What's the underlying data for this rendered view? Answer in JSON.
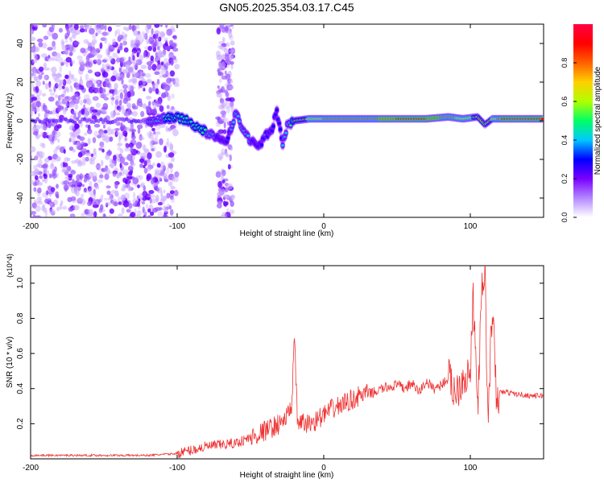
{
  "title": "GN05.2025.354.03.17.C45",
  "chart_data": [
    {
      "type": "heatmap",
      "name": "spectrogram",
      "xlabel": "Height of straight line (km)",
      "ylabel": "Frequency (Hz)",
      "xlim": [
        -200,
        150
      ],
      "ylim": [
        -50,
        50
      ],
      "xticks": [
        -200,
        -100,
        0,
        100
      ],
      "yticks": [
        -40,
        -20,
        0,
        20,
        40
      ],
      "colorbar": {
        "label": "Normalized spectral amplitude",
        "range": [
          0,
          1
        ],
        "ticks": [
          "0.0",
          "0.2",
          "0.4",
          "0.6",
          "0.8"
        ],
        "tick_values": [
          0.0,
          0.2,
          0.4,
          0.6,
          0.8
        ],
        "colors": [
          "#ffffff",
          "#b388ff",
          "#7a00ff",
          "#0000ff",
          "#00c8ff",
          "#00ff66",
          "#b0ff00",
          "#ffd000",
          "#ff6000",
          "#ff0000",
          "#ff0044"
        ]
      },
      "noise_region_x": [
        -200,
        -100
      ],
      "noise_band_x": [
        -72,
        -62
      ],
      "ridge": [
        {
          "x": -120,
          "y": 0,
          "a": 0.35
        },
        {
          "x": -112,
          "y": 1,
          "a": 0.4
        },
        {
          "x": -105,
          "y": 2,
          "a": 0.5
        },
        {
          "x": -95,
          "y": 1,
          "a": 0.5
        },
        {
          "x": -85,
          "y": -4,
          "a": 0.5
        },
        {
          "x": -80,
          "y": -6,
          "a": 0.45
        },
        {
          "x": -74,
          "y": -9,
          "a": 0.35
        },
        {
          "x": -66,
          "y": -10,
          "a": 0.3
        },
        {
          "x": -60,
          "y": 4,
          "a": 0.4
        },
        {
          "x": -55,
          "y": -5,
          "a": 0.35
        },
        {
          "x": -50,
          "y": -10,
          "a": 0.35
        },
        {
          "x": -45,
          "y": -14,
          "a": 0.3
        },
        {
          "x": -40,
          "y": -8,
          "a": 0.35
        },
        {
          "x": -36,
          "y": -6,
          "a": 0.3
        },
        {
          "x": -32,
          "y": 5,
          "a": 0.3
        },
        {
          "x": -28,
          "y": -12,
          "a": 0.35
        },
        {
          "x": -25,
          "y": -3,
          "a": 0.35
        },
        {
          "x": -20,
          "y": 0,
          "a": 0.55
        },
        {
          "x": -10,
          "y": 1,
          "a": 0.65
        },
        {
          "x": 0,
          "y": 1,
          "a": 0.75
        },
        {
          "x": 15,
          "y": 1,
          "a": 0.8
        },
        {
          "x": 30,
          "y": 1,
          "a": 0.8
        },
        {
          "x": 50,
          "y": 1,
          "a": 0.85
        },
        {
          "x": 70,
          "y": 1,
          "a": 0.85
        },
        {
          "x": 85,
          "y": 2,
          "a": 0.8
        },
        {
          "x": 95,
          "y": 1,
          "a": 0.7
        },
        {
          "x": 105,
          "y": 2,
          "a": 0.6
        },
        {
          "x": 110,
          "y": -2,
          "a": 0.55
        },
        {
          "x": 115,
          "y": 1,
          "a": 0.65
        },
        {
          "x": 125,
          "y": 1,
          "a": 0.95
        },
        {
          "x": 140,
          "y": 1,
          "a": 0.95
        },
        {
          "x": 150,
          "y": 1,
          "a": 0.9
        }
      ]
    },
    {
      "type": "line",
      "name": "snr",
      "xlabel": "Height of straight line (km)",
      "ylabel": "SNR (10 * v/v)",
      "yscale_label": "(x10^4)",
      "xlim": [
        -200,
        150
      ],
      "ylim": [
        0,
        1.1
      ],
      "xticks": [
        -200,
        -100,
        0,
        100
      ],
      "yticks": [
        0.2,
        0.4,
        0.6,
        0.8,
        1.0
      ],
      "color": "#ee3333",
      "series": [
        {
          "name": "SNR",
          "x": [
            -200,
            -180,
            -160,
            -140,
            -120,
            -100,
            -90,
            -80,
            -70,
            -60,
            -50,
            -40,
            -30,
            -25,
            -22,
            -20,
            -18,
            -15,
            -10,
            -5,
            0,
            5,
            10,
            15,
            20,
            25,
            30,
            35,
            40,
            45,
            50,
            55,
            60,
            65,
            70,
            75,
            80,
            85,
            90,
            95,
            100,
            102,
            105,
            108,
            110,
            112,
            115,
            118,
            120,
            125,
            130,
            140,
            150
          ],
          "values": [
            0.02,
            0.02,
            0.02,
            0.02,
            0.02,
            0.03,
            0.05,
            0.07,
            0.08,
            0.09,
            0.12,
            0.16,
            0.2,
            0.24,
            0.3,
            0.68,
            0.22,
            0.2,
            0.2,
            0.22,
            0.25,
            0.28,
            0.3,
            0.32,
            0.34,
            0.36,
            0.37,
            0.38,
            0.4,
            0.41,
            0.42,
            0.4,
            0.43,
            0.38,
            0.44,
            0.4,
            0.42,
            0.46,
            0.38,
            0.47,
            0.48,
            0.9,
            0.3,
            0.95,
            1.08,
            0.2,
            0.88,
            0.3,
            0.38,
            0.38,
            0.37,
            0.36,
            0.36
          ]
        }
      ]
    }
  ]
}
